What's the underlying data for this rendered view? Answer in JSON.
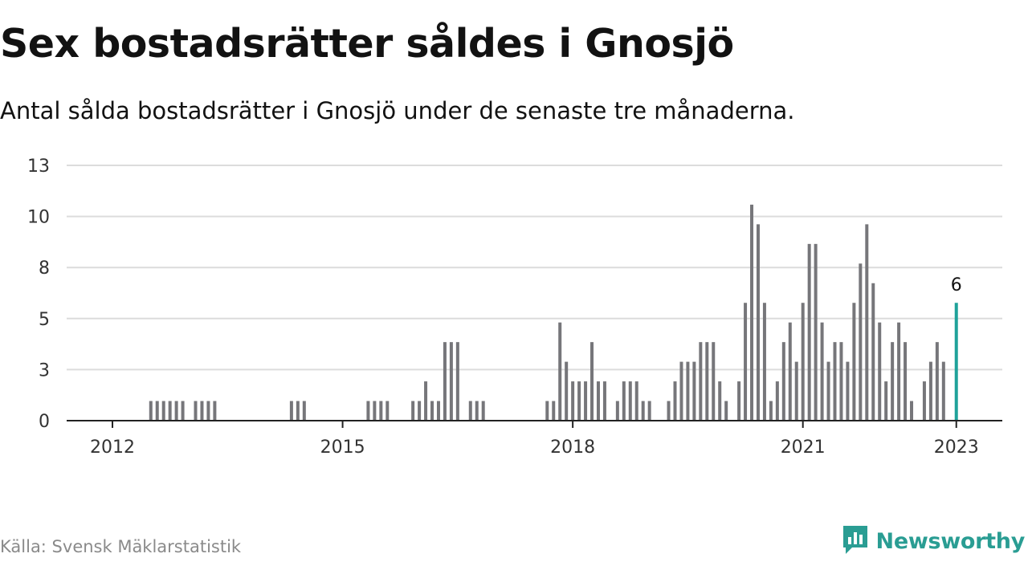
{
  "title": "Sex bostadsrätter såldes i Gnosjö",
  "subtitle": "Antal sålda bostadsrätter i Gnosjö under de senaste tre månaderna.",
  "source": "Källa: Svensk Mäklarstatistik",
  "brand": {
    "name": "Newsworthy",
    "icon": "chart-speech-bubble-icon"
  },
  "colors": {
    "bar": "#76767a",
    "highlight": "#1fa29a",
    "grid": "#dcdcdc",
    "axis": "#222222",
    "brand": "#2a9d93"
  },
  "chart_data": {
    "type": "bar",
    "x_axis": "monthly time axis, Jan 2011 – Mar 2023",
    "ylim": [
      0,
      13
    ],
    "yticks": [
      "0",
      "3",
      "5",
      "8",
      "10",
      "13"
    ],
    "ytick_values": [
      0,
      2.6,
      5.2,
      7.8,
      10.4,
      13
    ],
    "xticks": [
      "2012",
      "2015",
      "2018",
      "2021",
      "2023"
    ],
    "xtick_months": [
      "2012-01",
      "2015-01",
      "2018-01",
      "2021-01",
      "2023-01"
    ],
    "grid": true,
    "highlight_label": "6",
    "bars": [
      {
        "month": "2012-07",
        "value": 1
      },
      {
        "month": "2012-08",
        "value": 1
      },
      {
        "month": "2012-09",
        "value": 1
      },
      {
        "month": "2012-10",
        "value": 1
      },
      {
        "month": "2012-11",
        "value": 1
      },
      {
        "month": "2012-12",
        "value": 1
      },
      {
        "month": "2013-02",
        "value": 1
      },
      {
        "month": "2013-03",
        "value": 1
      },
      {
        "month": "2013-04",
        "value": 1
      },
      {
        "month": "2013-05",
        "value": 1
      },
      {
        "month": "2014-05",
        "value": 1
      },
      {
        "month": "2014-06",
        "value": 1
      },
      {
        "month": "2014-07",
        "value": 1
      },
      {
        "month": "2015-05",
        "value": 1
      },
      {
        "month": "2015-06",
        "value": 1
      },
      {
        "month": "2015-07",
        "value": 1
      },
      {
        "month": "2015-08",
        "value": 1
      },
      {
        "month": "2015-12",
        "value": 1
      },
      {
        "month": "2016-01",
        "value": 1
      },
      {
        "month": "2016-02",
        "value": 2
      },
      {
        "month": "2016-03",
        "value": 1
      },
      {
        "month": "2016-04",
        "value": 1
      },
      {
        "month": "2016-05",
        "value": 4
      },
      {
        "month": "2016-06",
        "value": 4
      },
      {
        "month": "2016-07",
        "value": 4
      },
      {
        "month": "2016-09",
        "value": 1
      },
      {
        "month": "2016-10",
        "value": 1
      },
      {
        "month": "2016-11",
        "value": 1
      },
      {
        "month": "2017-09",
        "value": 1
      },
      {
        "month": "2017-10",
        "value": 1
      },
      {
        "month": "2017-11",
        "value": 5
      },
      {
        "month": "2017-12",
        "value": 3
      },
      {
        "month": "2018-01",
        "value": 2
      },
      {
        "month": "2018-02",
        "value": 2
      },
      {
        "month": "2018-03",
        "value": 2
      },
      {
        "month": "2018-04",
        "value": 4
      },
      {
        "month": "2018-05",
        "value": 2
      },
      {
        "month": "2018-06",
        "value": 2
      },
      {
        "month": "2018-08",
        "value": 1
      },
      {
        "month": "2018-09",
        "value": 2
      },
      {
        "month": "2018-10",
        "value": 2
      },
      {
        "month": "2018-11",
        "value": 2
      },
      {
        "month": "2018-12",
        "value": 1
      },
      {
        "month": "2019-01",
        "value": 1
      },
      {
        "month": "2019-04",
        "value": 1
      },
      {
        "month": "2019-05",
        "value": 2
      },
      {
        "month": "2019-06",
        "value": 3
      },
      {
        "month": "2019-07",
        "value": 3
      },
      {
        "month": "2019-08",
        "value": 3
      },
      {
        "month": "2019-09",
        "value": 4
      },
      {
        "month": "2019-10",
        "value": 4
      },
      {
        "month": "2019-11",
        "value": 4
      },
      {
        "month": "2019-12",
        "value": 2
      },
      {
        "month": "2020-01",
        "value": 1
      },
      {
        "month": "2020-03",
        "value": 2
      },
      {
        "month": "2020-04",
        "value": 6
      },
      {
        "month": "2020-05",
        "value": 11
      },
      {
        "month": "2020-06",
        "value": 10
      },
      {
        "month": "2020-07",
        "value": 6
      },
      {
        "month": "2020-08",
        "value": 1
      },
      {
        "month": "2020-09",
        "value": 2
      },
      {
        "month": "2020-10",
        "value": 4
      },
      {
        "month": "2020-11",
        "value": 5
      },
      {
        "month": "2020-12",
        "value": 3
      },
      {
        "month": "2021-01",
        "value": 6
      },
      {
        "month": "2021-02",
        "value": 9
      },
      {
        "month": "2021-03",
        "value": 9
      },
      {
        "month": "2021-04",
        "value": 5
      },
      {
        "month": "2021-05",
        "value": 3
      },
      {
        "month": "2021-06",
        "value": 4
      },
      {
        "month": "2021-07",
        "value": 4
      },
      {
        "month": "2021-08",
        "value": 3
      },
      {
        "month": "2021-09",
        "value": 6
      },
      {
        "month": "2021-10",
        "value": 8
      },
      {
        "month": "2021-11",
        "value": 10
      },
      {
        "month": "2021-12",
        "value": 7
      },
      {
        "month": "2022-01",
        "value": 5
      },
      {
        "month": "2022-02",
        "value": 2
      },
      {
        "month": "2022-03",
        "value": 4
      },
      {
        "month": "2022-04",
        "value": 5
      },
      {
        "month": "2022-05",
        "value": 4
      },
      {
        "month": "2022-06",
        "value": 1
      },
      {
        "month": "2022-08",
        "value": 2
      },
      {
        "month": "2022-09",
        "value": 3
      },
      {
        "month": "2022-10",
        "value": 4
      },
      {
        "month": "2022-11",
        "value": 3
      },
      {
        "month": "2023-01",
        "value": 6,
        "highlight": true
      }
    ]
  }
}
